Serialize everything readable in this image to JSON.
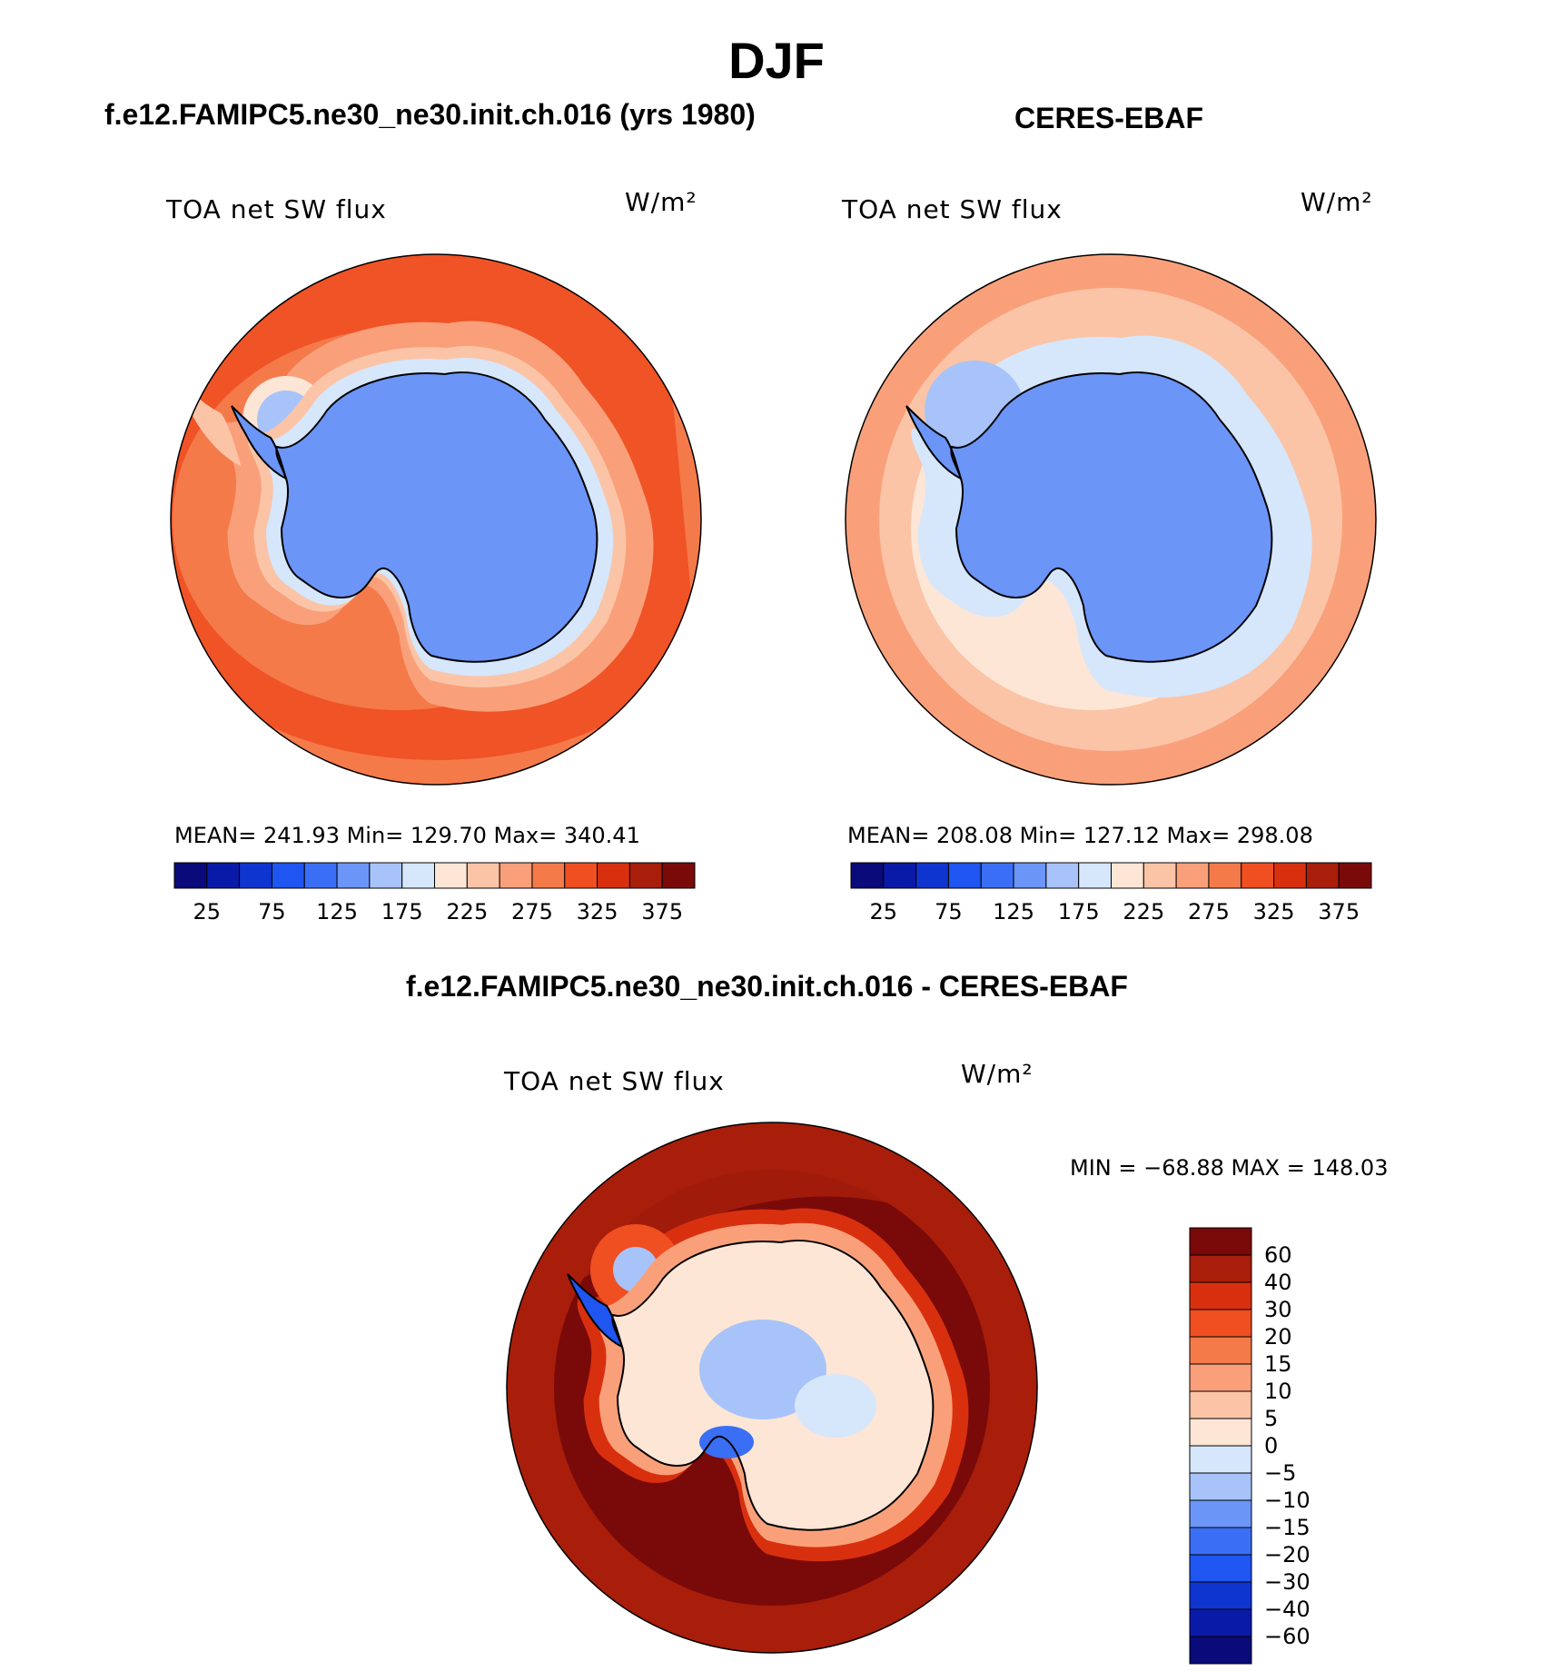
{
  "title": "DJF",
  "units_label": "W/m²",
  "panels": {
    "model": {
      "case": "f.e12.FAMIPC5.ne30_ne30.init.ch.016 (yrs 1980)",
      "variable": "TOA net SW flux",
      "stats": "MEAN= 241.93   Min= 129.70   Max= 340.41"
    },
    "obs": {
      "case": "CERES-EBAF",
      "variable": "TOA net SW flux",
      "stats": "MEAN= 208.08   Min= 127.12   Max= 298.08"
    },
    "diff": {
      "case": "f.e12.FAMIPC5.ne30_ne30.init.ch.016 - CERES-EBAF",
      "variable": "TOA net SW flux",
      "stats": "MIN = −68.88 MAX = 148.03"
    }
  },
  "chart_data": [
    {
      "type": "heatmap",
      "projection": "south-polar-stereographic",
      "title": "TOA net SW flux",
      "subtitle": "f.e12.FAMIPC5.ne30_ne30.init.ch.016 (yrs 1980)",
      "units": "W/m²",
      "mean": 241.93,
      "min": 129.7,
      "max": 340.41,
      "colorbar_levels": [
        25,
        50,
        75,
        100,
        125,
        150,
        175,
        200,
        225,
        250,
        275,
        300,
        325,
        350,
        375
      ],
      "colorbar_tick_labels": [
        "25",
        "75",
        "125",
        "175",
        "225",
        "275",
        "325",
        "375"
      ],
      "fields": {
        "ocean": 300,
        "coast_band": 240,
        "ice_shelf": 140,
        "continent": 150
      }
    },
    {
      "type": "heatmap",
      "projection": "south-polar-stereographic",
      "title": "TOA net SW flux",
      "subtitle": "CERES-EBAF",
      "units": "W/m²",
      "mean": 208.08,
      "min": 127.12,
      "max": 298.08,
      "colorbar_levels": [
        25,
        50,
        75,
        100,
        125,
        150,
        175,
        200,
        225,
        250,
        275,
        300,
        325,
        350,
        375
      ],
      "colorbar_tick_labels": [
        "25",
        "75",
        "125",
        "175",
        "225",
        "275",
        "325",
        "375"
      ],
      "fields": {
        "outer": 260,
        "mid": 235,
        "inner": 215,
        "coast_band": 190,
        "continent": 150
      }
    },
    {
      "type": "heatmap",
      "projection": "south-polar-stereographic",
      "title": "TOA net SW flux",
      "subtitle": "f.e12.FAMIPC5.ne30_ne30.init.ch.016 - CERES-EBAF",
      "units": "W/m²",
      "min": -68.88,
      "max": 148.03,
      "colorbar_levels": [
        -60,
        -40,
        -30,
        -20,
        -15,
        -10,
        -5,
        0,
        5,
        10,
        15,
        20,
        30,
        40,
        60
      ],
      "colorbar_tick_labels": [
        "60",
        "40",
        "30",
        "20",
        "15",
        "10",
        "5",
        "0",
        "−5",
        "−10",
        "−15",
        "−20",
        "−30",
        "−40",
        "−60"
      ],
      "fields": {
        "outer": 45,
        "ring": 65,
        "coast_band": 12,
        "continent": 3,
        "negative_patches": -22
      }
    }
  ],
  "palettes": {
    "flux": [
      "#0a0a7a",
      "#0a1aa8",
      "#0f35d0",
      "#1f55f0",
      "#3a6ff5",
      "#6b95f7",
      "#a7c3fa",
      "#d6e6fb",
      "#fde6d6",
      "#fbc4a6",
      "#f9a07a",
      "#f47a4a",
      "#f04f22",
      "#d8300e",
      "#a81e0a",
      "#7a0a0a"
    ],
    "diff": [
      "#0a0a7a",
      "#0a1aa8",
      "#0f35d0",
      "#1f55f0",
      "#3a6ff5",
      "#6b95f7",
      "#a7c3fa",
      "#d6e6fb",
      "#fde6d6",
      "#fbc4a6",
      "#f9a07a",
      "#f47a4a",
      "#f04f22",
      "#d8300e",
      "#a81e0a",
      "#7a0a0a"
    ]
  }
}
